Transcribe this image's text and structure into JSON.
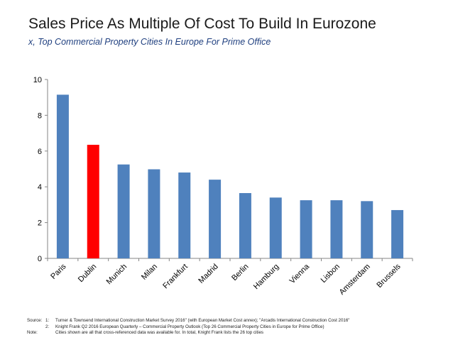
{
  "header": {
    "title": "Sales Price As Multiple Of Cost To Build In Eurozone",
    "subtitle": "x, Top Commercial Property Cities In Europe For Prime Office"
  },
  "chart_data": {
    "type": "bar",
    "title": "Sales Price As Multiple Of Cost To Build In Eurozone",
    "subtitle": "x, Top Commercial Property Cities In Europe For Prime Office",
    "xlabel": "",
    "ylabel": "",
    "categories": [
      "Paris",
      "Dublin",
      "Munich",
      "Milan",
      "Frankfurt",
      "Madrid",
      "Berlin",
      "Hamburg",
      "Vienna",
      "Lisbon",
      "Amsterdam",
      "Brussels"
    ],
    "values": [
      9.15,
      6.35,
      5.25,
      4.98,
      4.8,
      4.4,
      3.65,
      3.4,
      3.25,
      3.25,
      3.2,
      2.7
    ],
    "ylim": [
      0,
      10
    ],
    "yticks": [
      "0",
      "2",
      "4",
      "6",
      "8",
      "10"
    ],
    "grid": false,
    "legend": "none",
    "colors": {
      "default": "#4f81bd",
      "highlight": "#ff0000",
      "axis": "#868686"
    },
    "highlight_index": 1
  },
  "footer": {
    "source_label": "Source:",
    "note_label": "Note:",
    "num1": "1:",
    "num2": "2:",
    "line1": "Turner & Townsend International Construction Market Survey 2016\" (with European Market Cost annex); \"Arcadis International Construction Cost 2016\"",
    "line2": "Knight Frank Q2 2016 European Quarterly – Commercial Property Outlook (Top 26 Commercial Property Cities in Europe for Prime Office)",
    "line3": "Cities shown are all that cross-referenced data was available for. In total, Knight Frank lists the 26 top cities"
  }
}
